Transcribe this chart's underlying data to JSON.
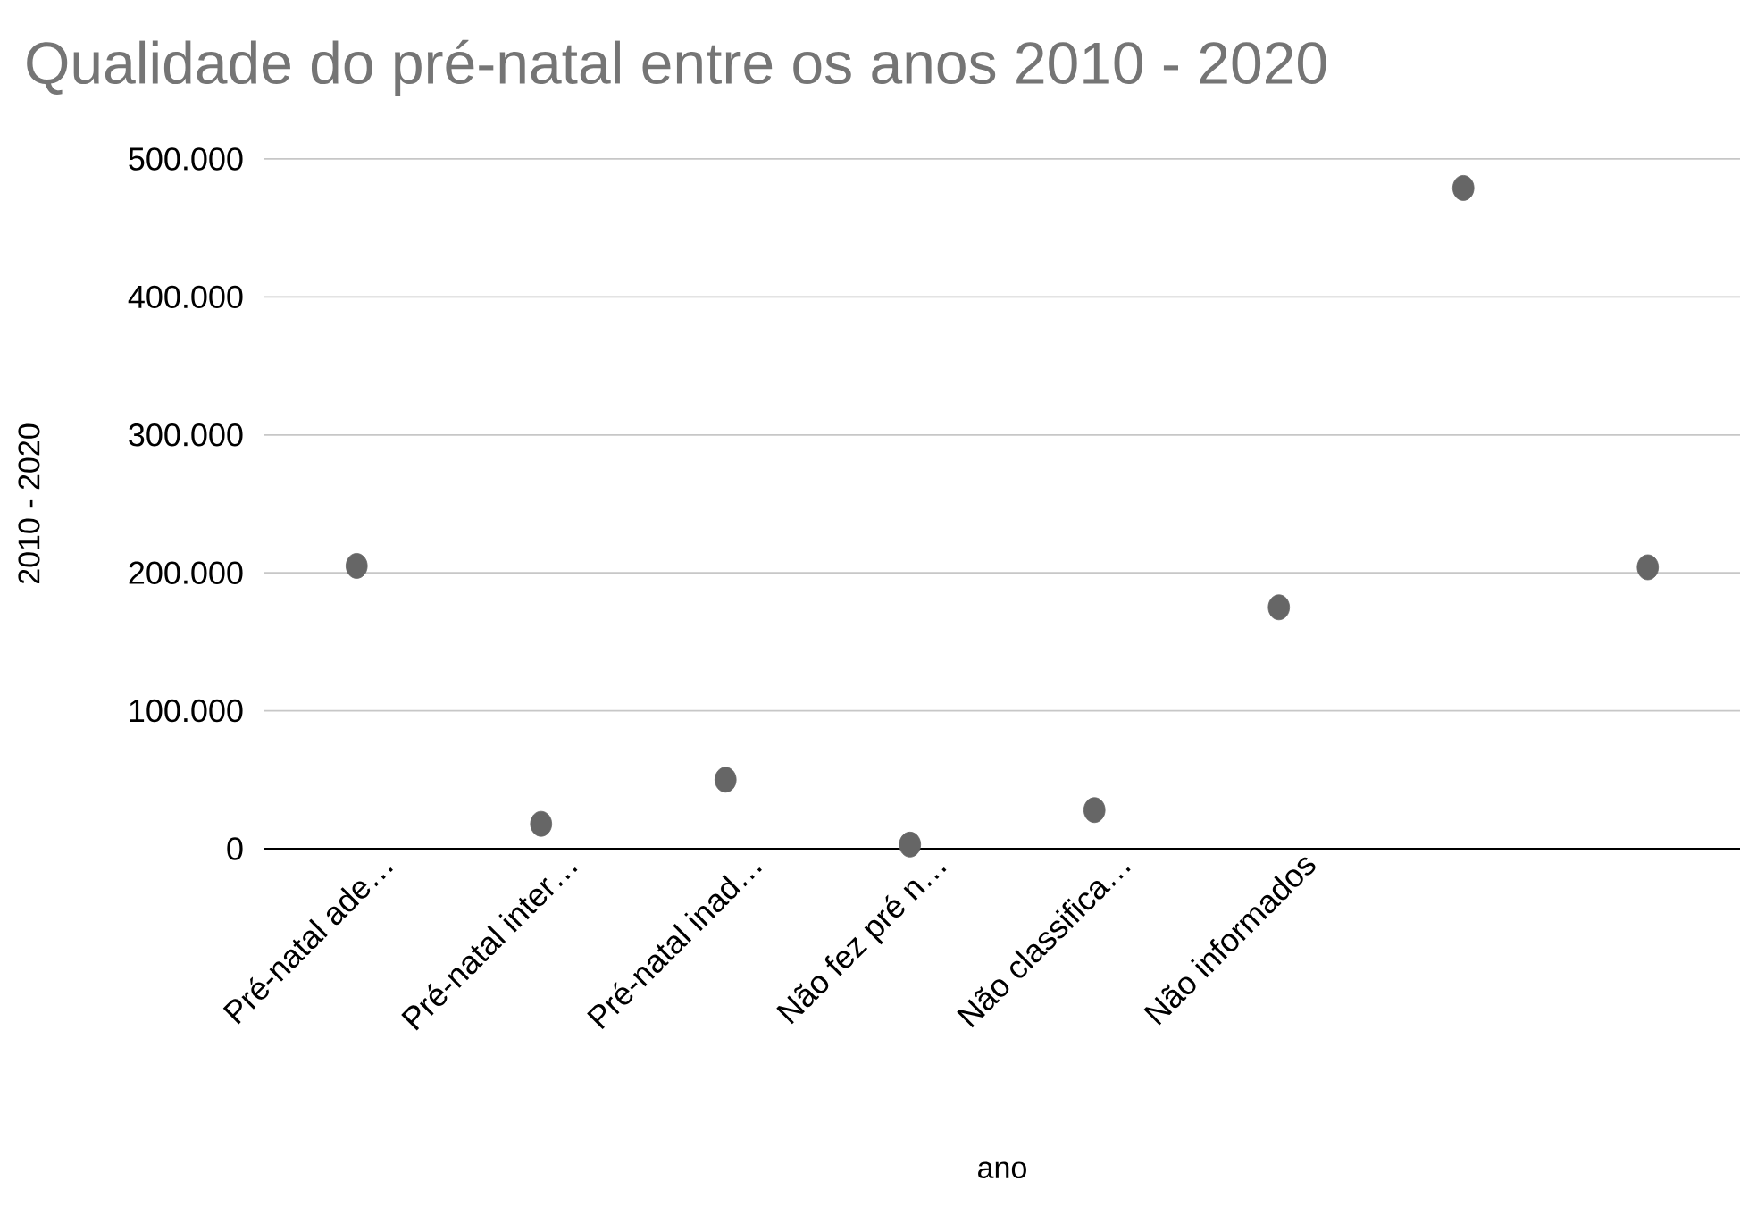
{
  "chart_data": {
    "type": "scatter",
    "title": "Qualidade do pré-natal entre os anos 2010 - 2020",
    "xlabel": "ano",
    "ylabel": "2010 - 2020",
    "categories": [
      "Pré-natal ade…",
      "Pré-natal inter…",
      "Pré-natal inad…",
      "Não fez pré n…",
      "Não classifica…",
      "Não informados",
      null,
      null
    ],
    "values": [
      205000,
      18000,
      50000,
      3000,
      28000,
      175000,
      479000,
      204000
    ],
    "color": "#666666",
    "ylim": [
      0,
      500000
    ],
    "yticks": [
      {
        "value": 0,
        "label": "0"
      },
      {
        "value": 100000,
        "label": "100.000"
      },
      {
        "value": 200000,
        "label": "200.000"
      },
      {
        "value": 300000,
        "label": "300.000"
      },
      {
        "value": 400000,
        "label": "400.000"
      },
      {
        "value": 500000,
        "label": "500.000"
      }
    ],
    "grid": "y"
  }
}
